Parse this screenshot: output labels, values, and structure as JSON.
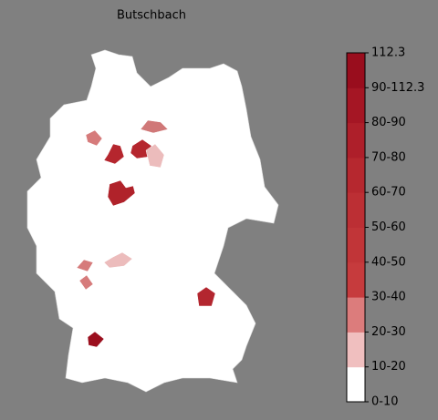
{
  "map": {
    "title": "Butschbach",
    "colorbar": {
      "labels": [
        "0-10",
        "10-20",
        "20-30",
        "30-40",
        "40-50",
        "50-60",
        "60-70",
        "70-80",
        "80-90",
        "90-112.3",
        "112.3"
      ],
      "colors": [
        "#ffffff",
        "#f0bfbf",
        "#dc7c7c",
        "#c63b3d",
        "#c13538",
        "#bc2f34",
        "#b6282f",
        "#ae1f2a",
        "#a51624",
        "#990d1d"
      ]
    }
  }
}
